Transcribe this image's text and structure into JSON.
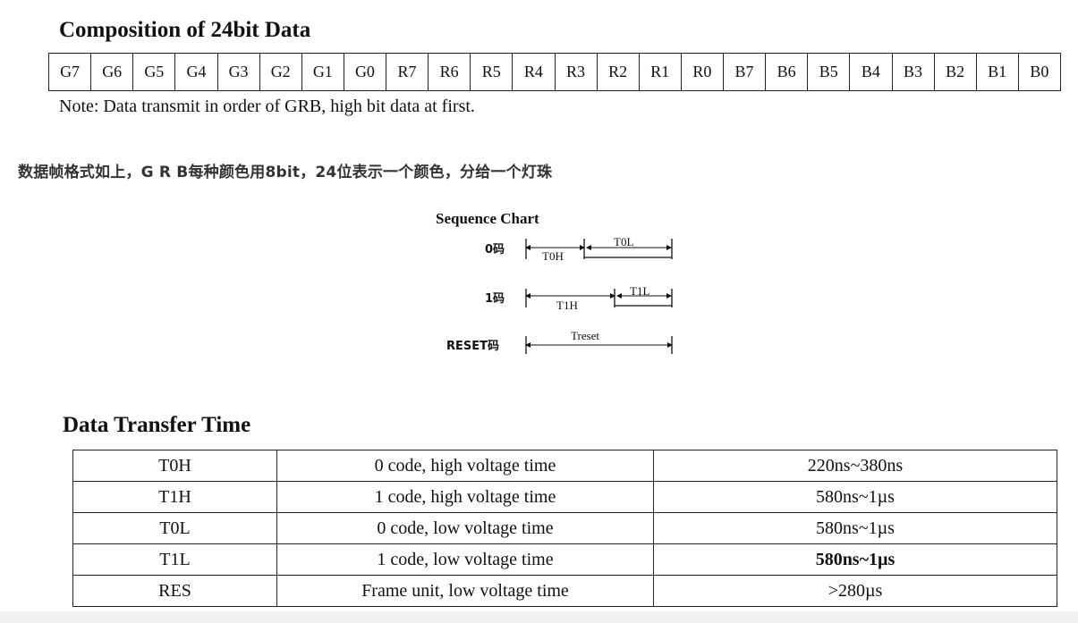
{
  "composition": {
    "title": "Composition of 24bit Data",
    "bits": [
      "G7",
      "G6",
      "G5",
      "G4",
      "G3",
      "G2",
      "G1",
      "G0",
      "R7",
      "R6",
      "R5",
      "R4",
      "R3",
      "R2",
      "R1",
      "R0",
      "B7",
      "B6",
      "B5",
      "B4",
      "B3",
      "B2",
      "B1",
      "B0"
    ],
    "note": "Note: Data transmit in order of GRB, high bit data at first."
  },
  "chinese_note": "数据帧格式如上，G R B每种颜色用8bit，24位表示一个颜色，分给一个灯珠",
  "sequence_chart": {
    "title": "Sequence Chart",
    "rows": [
      {
        "label": "0码",
        "high": "T0H",
        "low": "T0L"
      },
      {
        "label": "1码",
        "high": "T1H",
        "low": "T1L"
      },
      {
        "label": "RESET码",
        "span": "Treset"
      }
    ]
  },
  "transfer": {
    "title": "Data Transfer Time",
    "rows": [
      {
        "name": "T0H",
        "desc": "0 code, high voltage time",
        "value": "220ns~380ns"
      },
      {
        "name": "T1H",
        "desc": "1 code, high voltage time",
        "value": "580ns~1µs"
      },
      {
        "name": "T0L",
        "desc": "0 code, low voltage time",
        "value": "580ns~1µs"
      },
      {
        "name": "T1L",
        "desc": "1 code, low voltage time",
        "value": "580ns~1µs"
      },
      {
        "name": "RES",
        "desc": "Frame unit, low voltage time",
        "value": ">280µs"
      }
    ]
  }
}
